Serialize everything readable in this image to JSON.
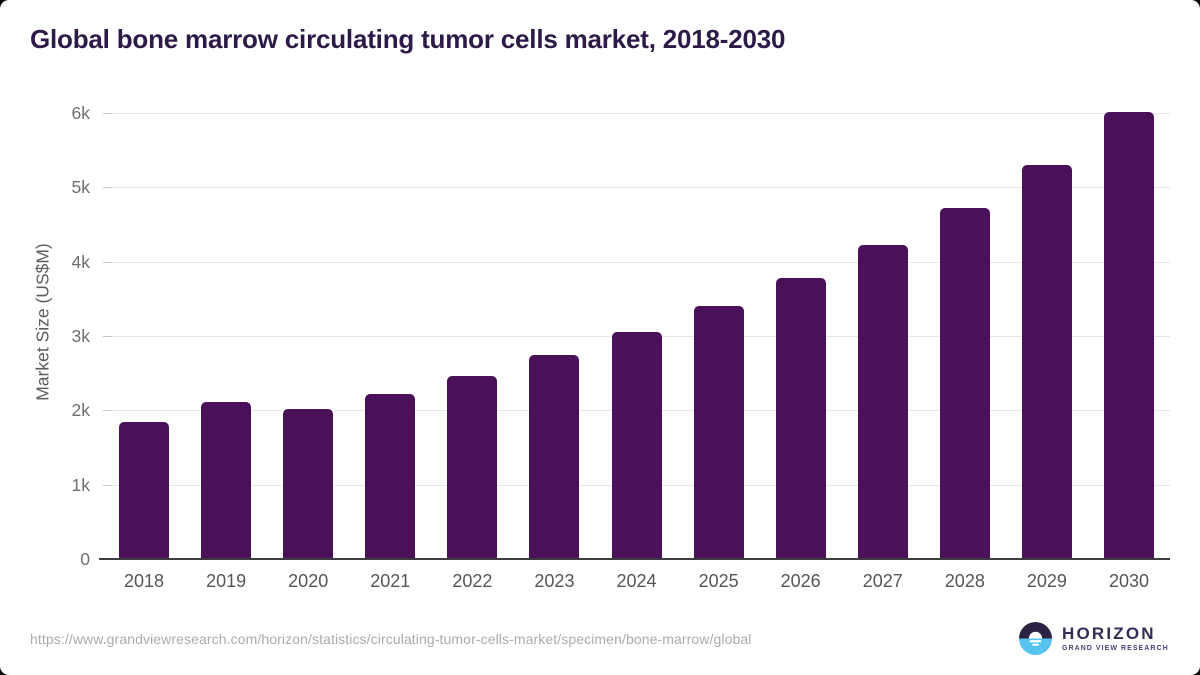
{
  "title": "Global bone marrow circulating tumor cells market, 2018-2030",
  "chart_data": {
    "type": "bar",
    "title": "Global bone marrow circulating tumor cells market, 2018-2030",
    "categories": [
      "2018",
      "2019",
      "2020",
      "2021",
      "2022",
      "2023",
      "2024",
      "2025",
      "2026",
      "2027",
      "2028",
      "2029",
      "2030"
    ],
    "values": [
      1850,
      2110,
      2020,
      2220,
      2460,
      2740,
      3050,
      3400,
      3780,
      4220,
      4720,
      5300,
      6020
    ],
    "xlabel": "",
    "ylabel": "Market Size (US$M)",
    "ylim": [
      0,
      6000
    ],
    "yticks": [
      {
        "value": 0,
        "label": "0"
      },
      {
        "value": 1000,
        "label": "1k"
      },
      {
        "value": 2000,
        "label": "2k"
      },
      {
        "value": 3000,
        "label": "3k"
      },
      {
        "value": 4000,
        "label": "4k"
      },
      {
        "value": 5000,
        "label": "5k"
      },
      {
        "value": 6000,
        "label": "6k"
      }
    ],
    "grid": true,
    "legend": false,
    "bar_color": "#4a1158"
  },
  "colors": {
    "title": "#2e1a47",
    "bar": "#4a1158",
    "gridline": "#e7e7e7",
    "tick": "#c9c9c9",
    "axis": "#3d3d40",
    "ylab": "#6e6f71",
    "xlab": "#55565a",
    "url": "#aaabad",
    "logo-navy": "#2c2344",
    "logo-blue": "#57c4f0",
    "logo-text": "#332c54"
  },
  "footer": {
    "source_url": "https://www.grandviewresearch.com/horizon/statistics/circulating-tumor-cells-market/specimen/bone-marrow/global",
    "logo": {
      "brand": "HORIZON",
      "subtitle": "GRAND VIEW RESEARCH"
    }
  }
}
